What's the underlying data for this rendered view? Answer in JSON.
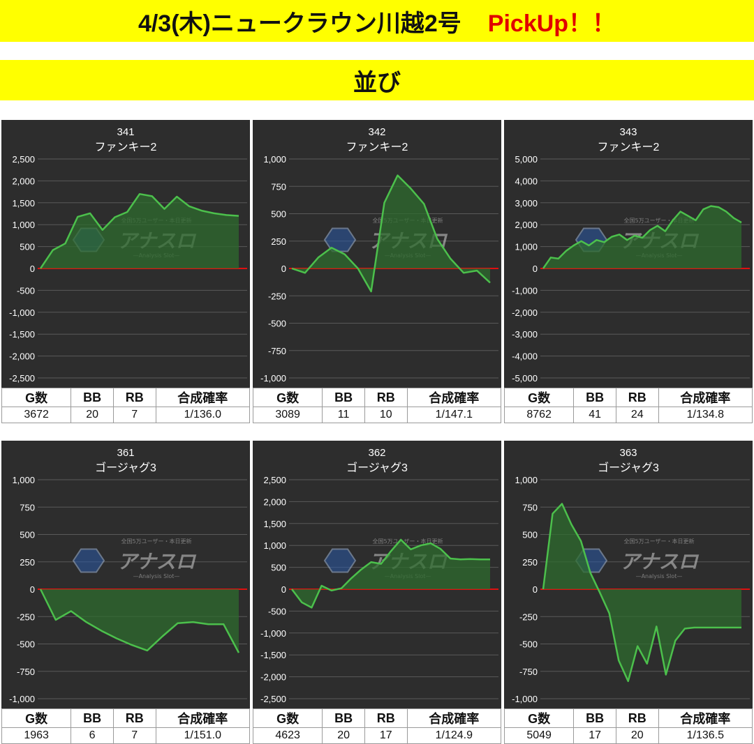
{
  "header": {
    "title": "4/3(木)ニュークラウン川越2号",
    "pickup": "PickUp！！",
    "subtitle": "並び"
  },
  "colors": {
    "banner": "#ffff00",
    "pickup_text": "#e00000",
    "panel_bg": "#2d2d2d",
    "grid": "#5a5a5a",
    "zero_line": "#e01010",
    "line": "#4cc04c",
    "fill": "#2e6b2e"
  },
  "watermark": {
    "top_text": "全国5万ユーザー・本日更新",
    "logo_text": "アナスロ",
    "bottom_text": "—Analysis Slot—"
  },
  "stat_headers": {
    "games": "G数",
    "bb": "BB",
    "rb": "RB",
    "rate": "合成確率"
  },
  "machines": [
    {
      "number": "341",
      "name": "ファンキー2",
      "games": "3672",
      "bb": "20",
      "rb": "7",
      "rate": "1/136.0"
    },
    {
      "number": "342",
      "name": "ファンキー2",
      "games": "3089",
      "bb": "11",
      "rb": "10",
      "rate": "1/147.1"
    },
    {
      "number": "343",
      "name": "ファンキー2",
      "games": "8762",
      "bb": "41",
      "rb": "24",
      "rate": "1/134.8"
    },
    {
      "number": "361",
      "name": "ゴージャグ3",
      "games": "1963",
      "bb": "6",
      "rb": "7",
      "rate": "1/151.0"
    },
    {
      "number": "362",
      "name": "ゴージャグ3",
      "games": "4623",
      "bb": "20",
      "rb": "17",
      "rate": "1/124.9"
    },
    {
      "number": "363",
      "name": "ゴージャグ3",
      "games": "5049",
      "bb": "17",
      "rb": "20",
      "rate": "1/136.5"
    }
  ],
  "chart_data": [
    {
      "type": "area",
      "title": "341",
      "subtitle": "ファンキー2",
      "ylim": [
        -2500,
        2500
      ],
      "yticks": [
        "2,500",
        "2,000",
        "1,500",
        "1,000",
        "500",
        "0",
        "-500",
        "-1,000",
        "-1,500",
        "-2,000",
        "-2,500"
      ],
      "x": [
        0,
        1,
        2,
        3,
        4,
        5,
        6,
        7,
        8,
        9,
        10,
        11,
        12,
        13,
        14,
        15,
        16
      ],
      "y": [
        0,
        420,
        570,
        1180,
        1260,
        880,
        1170,
        1290,
        1700,
        1650,
        1360,
        1640,
        1420,
        1320,
        1260,
        1220,
        1200
      ]
    },
    {
      "type": "area",
      "title": "342",
      "subtitle": "ファンキー2",
      "ylim": [
        -1000,
        1000
      ],
      "yticks": [
        "1,000",
        "750",
        "500",
        "250",
        "0",
        "-250",
        "-500",
        "-750",
        "-1,000"
      ],
      "x": [
        0,
        1,
        2,
        3,
        4,
        5,
        6,
        7,
        8,
        9,
        10,
        11,
        12,
        13,
        14,
        15
      ],
      "y": [
        0,
        -40,
        100,
        190,
        130,
        0,
        -210,
        600,
        850,
        730,
        590,
        270,
        90,
        -40,
        -20,
        -130
      ]
    },
    {
      "type": "area",
      "title": "343",
      "subtitle": "ファンキー2",
      "ylim": [
        -5000,
        5000
      ],
      "yticks": [
        "5,000",
        "4,000",
        "3,000",
        "2,000",
        "1,000",
        "0",
        "-1,000",
        "-2,000",
        "-3,000",
        "-4,000",
        "-5,000"
      ],
      "x": [
        0,
        1,
        2,
        3,
        4,
        5,
        6,
        7,
        8,
        9,
        10,
        11,
        12,
        13,
        14,
        15,
        16,
        17,
        18,
        19,
        20,
        21,
        22,
        23,
        24,
        25,
        26
      ],
      "y": [
        0,
        500,
        450,
        800,
        1050,
        1250,
        1050,
        1300,
        1200,
        1450,
        1550,
        1300,
        1500,
        1400,
        1750,
        1950,
        1700,
        2200,
        2600,
        2400,
        2200,
        2700,
        2850,
        2800,
        2600,
        2300,
        2100
      ]
    },
    {
      "type": "area",
      "title": "361",
      "subtitle": "ゴージャグ3",
      "ylim": [
        -1000,
        1000
      ],
      "yticks": [
        "1,000",
        "750",
        "500",
        "250",
        "0",
        "-250",
        "-500",
        "-750",
        "-1,000"
      ],
      "x": [
        0,
        1,
        2,
        3,
        4,
        5,
        6,
        7,
        8,
        9,
        10,
        11,
        12,
        13
      ],
      "y": [
        0,
        -280,
        -200,
        -300,
        -380,
        -450,
        -510,
        -560,
        -430,
        -310,
        -300,
        -320,
        -320,
        -580
      ]
    },
    {
      "type": "area",
      "title": "362",
      "subtitle": "ゴージャグ3",
      "ylim": [
        -2500,
        2500
      ],
      "yticks": [
        "2,500",
        "2,000",
        "1,500",
        "1,000",
        "500",
        "0",
        "-500",
        "-1,000",
        "-1,500",
        "-2,000",
        "-2,500"
      ],
      "x": [
        0,
        1,
        2,
        3,
        4,
        5,
        6,
        7,
        8,
        9,
        10,
        11,
        12,
        13,
        14,
        15,
        16,
        17,
        18,
        19,
        20
      ],
      "y": [
        0,
        -300,
        -420,
        80,
        -30,
        20,
        250,
        450,
        620,
        580,
        870,
        1130,
        910,
        1000,
        1050,
        920,
        700,
        680,
        690,
        680,
        680
      ]
    },
    {
      "type": "area",
      "title": "363",
      "subtitle": "ゴージャグ3",
      "ylim": [
        -1000,
        1000
      ],
      "yticks": [
        "1,000",
        "750",
        "500",
        "250",
        "0",
        "-250",
        "-500",
        "-750",
        "-1,000"
      ],
      "x": [
        0,
        1,
        2,
        3,
        4,
        5,
        6,
        7,
        8,
        9,
        10,
        11,
        12,
        13,
        14,
        15,
        16,
        17,
        18,
        19,
        20,
        21
      ],
      "y": [
        0,
        690,
        780,
        590,
        440,
        150,
        -30,
        -220,
        -650,
        -840,
        -520,
        -680,
        -340,
        -780,
        -470,
        -360,
        -350,
        -350,
        -350,
        -350,
        -350,
        -350
      ]
    }
  ]
}
